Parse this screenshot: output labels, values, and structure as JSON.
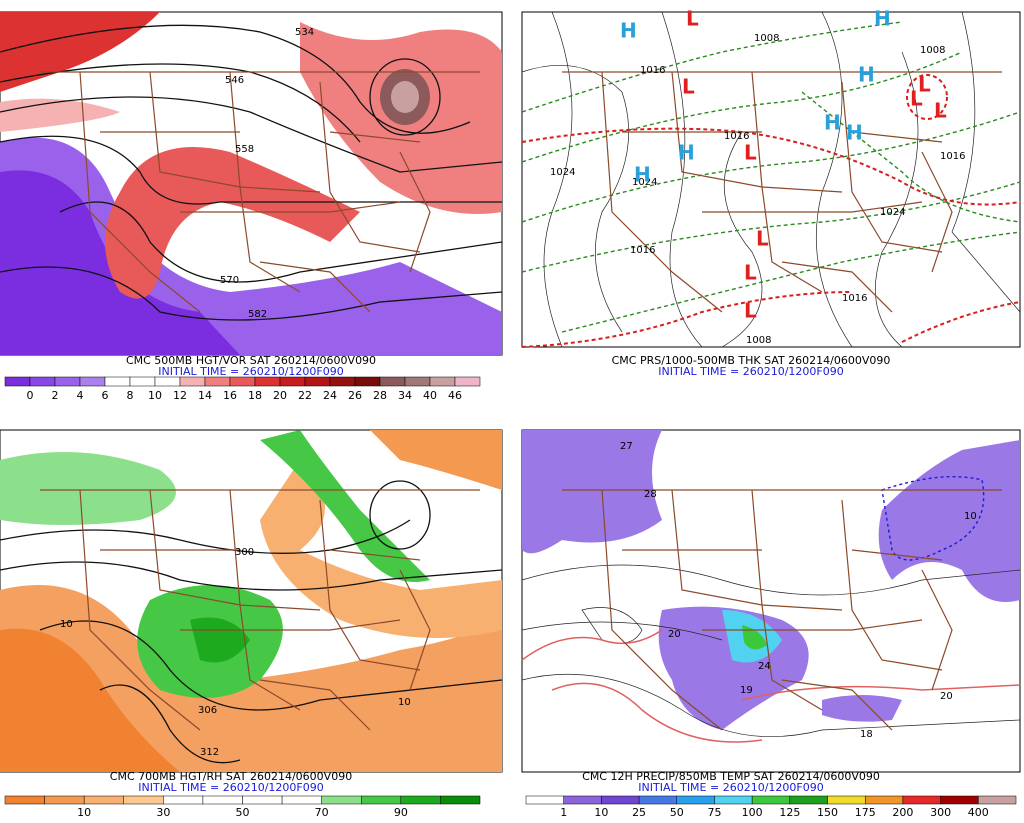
{
  "panels": [
    {
      "caption": "CMC 500MB HGT/VOR SAT 260214/0600V090",
      "initial_time": "INITIAL TIME = 260210/1200F090",
      "colorbar": {
        "colors": [
          "#7b2de0",
          "#8a46e6",
          "#9a62ea",
          "#ab7fee",
          "#ffffff",
          "#ffffff",
          "#ffffff",
          "#f6b2b2",
          "#f08080",
          "#e85a5a",
          "#dc3232",
          "#c81e1e",
          "#b41414",
          "#961010",
          "#7a0c0c",
          "#8c5a5a",
          "#a07878",
          "#c8a0a0",
          "#f0b4c8"
        ],
        "labels": [
          "0",
          "2",
          "4",
          "6",
          "8",
          "10",
          "12",
          "14",
          "16",
          "18",
          "20",
          "22",
          "24",
          "26",
          "28",
          "34",
          "40",
          "46"
        ]
      },
      "map_labels": [
        "534",
        "546",
        "558",
        "570",
        "582"
      ]
    },
    {
      "caption": "CMC PRS/1000-500MB THK SAT 260214/0600V090",
      "initial_time": "INITIAL TIME = 260210/1200F090",
      "map_labels": [
        "1016",
        "1008",
        "1016",
        "1024",
        "1024",
        "1016",
        "1016",
        "1008",
        "1016",
        "1024",
        "1008"
      ],
      "centers": [
        "H",
        "L",
        "H",
        "L",
        "L",
        "H",
        "H",
        "H",
        "H",
        "L",
        "L",
        "L",
        "L",
        "L",
        "H",
        "L"
      ]
    },
    {
      "caption": "CMC 700MB HGT/RH SAT 260214/0600V090",
      "initial_time": "INITIAL TIME = 260210/1200F090",
      "colorbar": {
        "colors": [
          "#f08232",
          "#f49a50",
          "#f8b070",
          "#fcc890",
          "#ffffff",
          "#ffffff",
          "#ffffff",
          "#ffffff",
          "#8ce08c",
          "#46c846",
          "#1eaa1e",
          "#0a8c0a"
        ],
        "labels": [
          "10",
          "30",
          "50",
          "70",
          "90"
        ]
      },
      "map_labels": [
        "300",
        "306",
        "312",
        "10",
        "10"
      ]
    },
    {
      "caption": "CMC 12H PRECIP/850MB TEMP SAT 260214/0600V090",
      "initial_time": "INITIAL TIME = 260210/1200F090",
      "colorbar": {
        "colors": [
          "#ffffff",
          "#8c64dc",
          "#6e46d2",
          "#4678e6",
          "#28a0f0",
          "#50d2f0",
          "#3cc83c",
          "#1ea01e",
          "#f0dc28",
          "#f09628",
          "#e62828",
          "#a00000",
          "#c8a0a0"
        ],
        "labels": [
          "1",
          "10",
          "25",
          "50",
          "75",
          "100",
          "125",
          "150",
          "175",
          "200",
          "300",
          "400"
        ]
      },
      "map_labels": [
        "27",
        "28",
        "20",
        "24",
        "19",
        "20",
        "18",
        "10"
      ]
    }
  ]
}
